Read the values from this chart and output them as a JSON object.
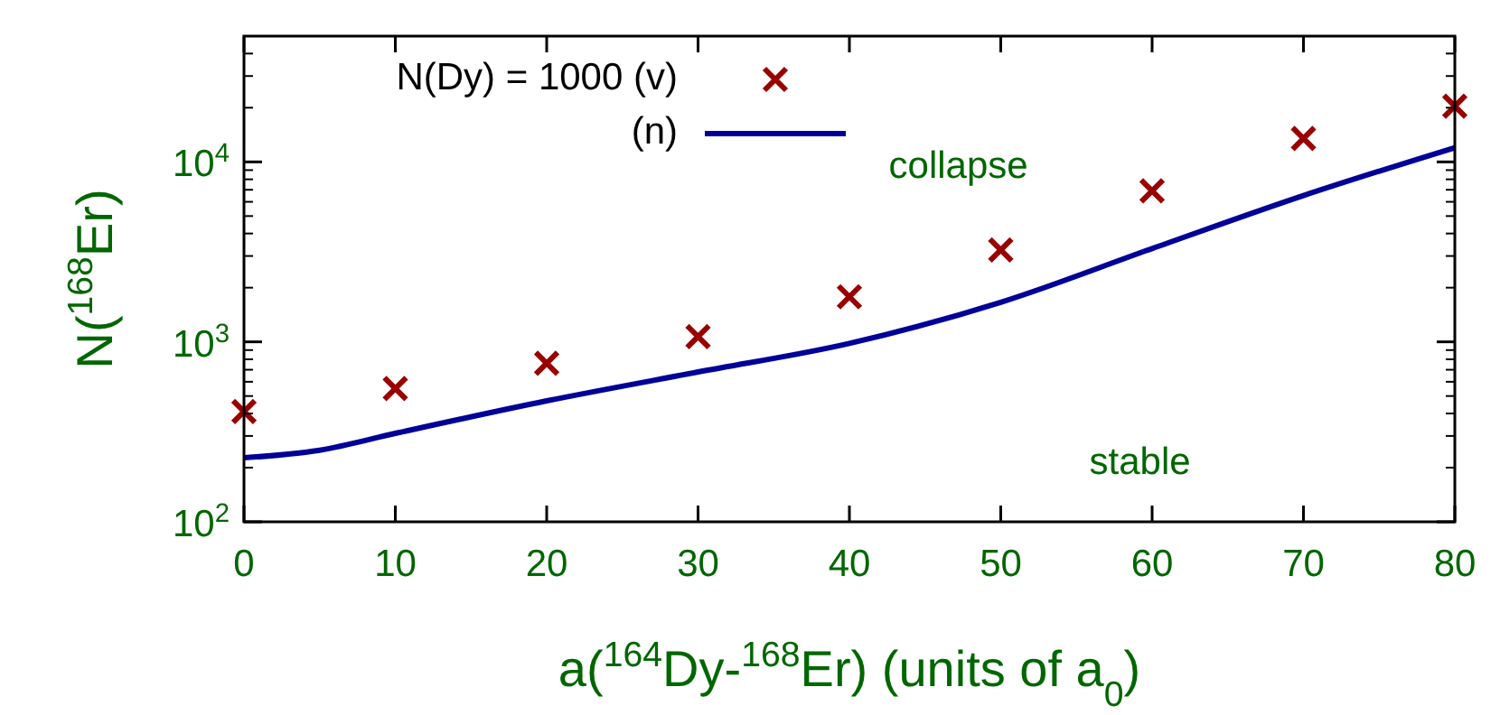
{
  "chart_data": {
    "type": "scatter",
    "xlabel": "a($^{164}$Dy-$^{168}$Er) (units of a$_{0}$)",
    "ylabel": "N($^{168}$Er)",
    "log": "y",
    "x": [
      0,
      10,
      20,
      30,
      40,
      50,
      60,
      70,
      80
    ],
    "xlim": [
      0,
      80
    ],
    "xticks": [
      0,
      10,
      20,
      30,
      40,
      50,
      60,
      70,
      80
    ],
    "ylim": [
      100,
      50000
    ],
    "yticks": [
      {
        "value": 100,
        "label": "10$^{2}$"
      },
      {
        "value": 1000,
        "label": "10$^{3}$"
      },
      {
        "value": 10000,
        "label": "10$^{4}$"
      }
    ],
    "legend": "top left",
    "grid": false,
    "series": [
      {
        "name": "N(Dy) = 1000 (v)",
        "marker": "cross",
        "color": "#990000",
        "values": [
          410,
          550,
          760,
          1070,
          1780,
          3240,
          6900,
          13500,
          20400
        ]
      },
      {
        "name": "(n)",
        "type": "line",
        "marker": "none",
        "line_style": "solid",
        "color": "#000099",
        "x": [
          0,
          5,
          10,
          20,
          30,
          40,
          50,
          60,
          70,
          80
        ],
        "values": [
          227,
          250,
          310,
          470,
          680,
          980,
          1660,
          3300,
          6500,
          12000
        ]
      }
    ],
    "annotations": [
      "collapse",
      "stable"
    ]
  }
}
